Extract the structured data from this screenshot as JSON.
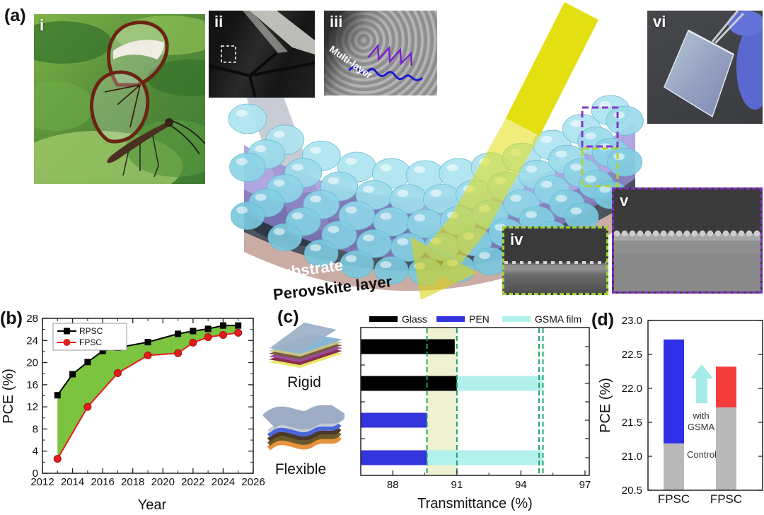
{
  "figure": {
    "panel_a": {
      "label": "(a)",
      "insets": {
        "i": "i",
        "ii": "ii",
        "iii": "iii",
        "iv": "iv",
        "v": "v",
        "vi": "vi"
      },
      "multilayer_annotation": "Multi-layer",
      "substrate_label": "Substrate",
      "perovskite_label": "Perovskite layer"
    },
    "panel_b": {
      "label": "(b)"
    },
    "panel_c": {
      "label": "(c)",
      "rigid_label": "Rigid",
      "flexible_label": "Flexible"
    },
    "panel_d": {
      "label": "(d)"
    }
  },
  "chart_data": [
    {
      "id": "b",
      "type": "line",
      "xlabel": "Year",
      "ylabel": "PCE (%)",
      "xlim": [
        2012,
        2026
      ],
      "ylim": [
        0,
        28
      ],
      "xticks": [
        2012,
        2014,
        2016,
        2018,
        2020,
        2022,
        2024,
        2026
      ],
      "yticks": [
        0,
        4,
        8,
        12,
        16,
        20,
        24,
        28
      ],
      "fill_between_color": "#7cc340",
      "legend_position": "top-left",
      "series": [
        {
          "name": "RPSC",
          "color": "#000000",
          "marker": "square",
          "points": [
            [
              2013,
              14.1
            ],
            [
              2014,
              17.9
            ],
            [
              2015,
              20.1
            ],
            [
              2016,
              22.1
            ],
            [
              2017,
              22.7
            ],
            [
              2019,
              23.7
            ],
            [
              2021,
              25.2
            ],
            [
              2022,
              25.7
            ],
            [
              2023,
              26.1
            ],
            [
              2024,
              26.7
            ],
            [
              2025,
              26.7
            ]
          ]
        },
        {
          "name": "FPSC",
          "color": "#e51c1c",
          "marker": "circle",
          "points": [
            [
              2013,
              2.6
            ],
            [
              2015,
              12.0
            ],
            [
              2017,
              18.1
            ],
            [
              2019,
              21.3
            ],
            [
              2021,
              21.7
            ],
            [
              2022,
              23.6
            ],
            [
              2023,
              24.6
            ],
            [
              2024,
              25.0
            ],
            [
              2025,
              25.4
            ]
          ]
        }
      ]
    },
    {
      "id": "c",
      "type": "bar",
      "orientation": "horizontal",
      "xlabel": "Transmittance (%)",
      "xlim": [
        86.5,
        97.2
      ],
      "xticks": [
        88,
        91,
        94,
        97
      ],
      "minor_xticks": [
        89.5,
        92.5,
        95.5
      ],
      "legend": [
        {
          "label": "Glass",
          "color": "#000000"
        },
        {
          "label": "PEN",
          "color": "#3434dd"
        },
        {
          "label": "GSMA film",
          "color": "#b2f0ec"
        }
      ],
      "bars": [
        {
          "row": "Rigid",
          "label": "Glass",
          "segments": [
            {
              "from": 86.5,
              "to": 90.9,
              "color": "#000000"
            }
          ]
        },
        {
          "row": "Rigid",
          "label": "Glass + GSMA film",
          "segments": [
            {
              "from": 86.5,
              "to": 91.0,
              "color": "#000000"
            },
            {
              "from": 91.0,
              "to": 95.0,
              "color": "#b2f0ec"
            }
          ]
        },
        {
          "row": "Flexible",
          "label": "PEN",
          "segments": [
            {
              "from": 86.5,
              "to": 89.6,
              "color": "#3434dd"
            }
          ]
        },
        {
          "row": "Flexible",
          "label": "PEN + GSMA film",
          "segments": [
            {
              "from": 86.5,
              "to": 89.6,
              "color": "#3434dd"
            },
            {
              "from": 89.6,
              "to": 95.0,
              "color": "#b2f0ec"
            }
          ]
        }
      ],
      "dashed_lines": {
        "color": "#21a366",
        "values": [
          89.6,
          91.0,
          94.85,
          95.03
        ]
      },
      "shaded_region": {
        "from": 89.6,
        "to": 91.0,
        "color": "rgba(224,232,170,0.55)"
      }
    },
    {
      "id": "d",
      "type": "stacked-bar",
      "ylabel": "PCE (%)",
      "ylim": [
        20.5,
        23.0
      ],
      "yticks": [
        20.5,
        21.0,
        21.5,
        22.0,
        22.5,
        23.0
      ],
      "categories": [
        "FPSC",
        "FPSC"
      ],
      "bars": [
        {
          "category": "FPSC",
          "control": 21.19,
          "with_gsma": 22.72,
          "control_color": "#b9b9b9",
          "gsma_color": "#3030e8"
        },
        {
          "category": "FPSC",
          "control": 21.72,
          "with_gsma": 22.32,
          "control_color": "#b9b9b9",
          "gsma_color": "#f53c3c"
        }
      ],
      "annotations": {
        "arrow_color": "#a5ebe7",
        "arrow_label_line1": "with",
        "arrow_label_line2": "GSMA",
        "control_label": "Control"
      }
    }
  ]
}
